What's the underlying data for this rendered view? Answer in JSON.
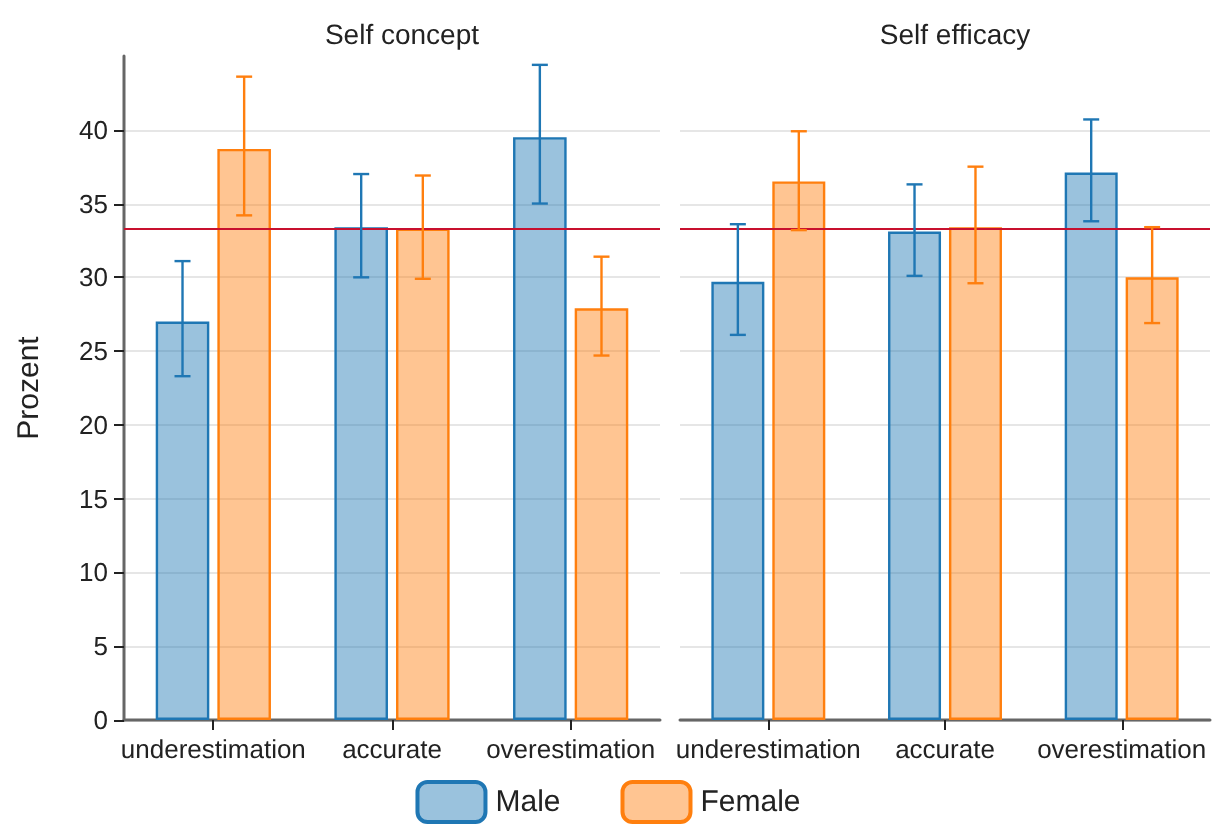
{
  "chart_data": [
    {
      "type": "bar",
      "title": "Self concept",
      "ylabel": "Prozent",
      "categories": [
        "underestimation",
        "accurate",
        "overestimation"
      ],
      "series": [
        {
          "name": "Male",
          "color": "#1f77b4",
          "values": [
            27.0,
            33.4,
            39.5
          ],
          "errors": [
            [
              23.3,
              31.1
            ],
            [
              30.0,
              37.0
            ],
            [
              35.0,
              44.4
            ]
          ]
        },
        {
          "name": "Female",
          "color": "#ff7f0e",
          "values": [
            38.7,
            33.3,
            27.9
          ],
          "errors": [
            [
              34.2,
              43.6
            ],
            [
              29.9,
              36.9
            ],
            [
              24.7,
              31.4
            ]
          ]
        }
      ],
      "ylim": [
        0,
        45
      ],
      "yticks": [
        0,
        5,
        10,
        15,
        20,
        25,
        30,
        35,
        40
      ],
      "grid": "y",
      "legend": "bottom",
      "ref_lines": [
        {
          "axis": "y",
          "value": 33.3,
          "color": "#c8102e"
        }
      ]
    },
    {
      "type": "bar",
      "title": "Self efficacy",
      "categories": [
        "underestimation",
        "accurate",
        "overestimation"
      ],
      "series": [
        {
          "color": "#1f77b4",
          "values": [
            29.7,
            33.1,
            37.1
          ],
          "errors": [
            [
              26.1,
              33.6
            ],
            [
              30.1,
              36.3
            ],
            [
              33.8,
              40.7
            ]
          ]
        },
        {
          "color": "#ff7f0e",
          "values": [
            36.5,
            33.4,
            30.0
          ],
          "errors": [
            [
              33.2,
              39.9
            ],
            [
              29.6,
              37.5
            ],
            [
              26.9,
              33.4
            ]
          ]
        }
      ],
      "yticks": [
        0,
        5,
        10,
        15,
        20,
        25,
        30,
        35,
        40
      ],
      "grid": "y",
      "tick_labels": "x",
      "ref_lines": [
        {
          "axis": "y",
          "value": 33.3,
          "color": "#c8102e"
        }
      ]
    }
  ]
}
